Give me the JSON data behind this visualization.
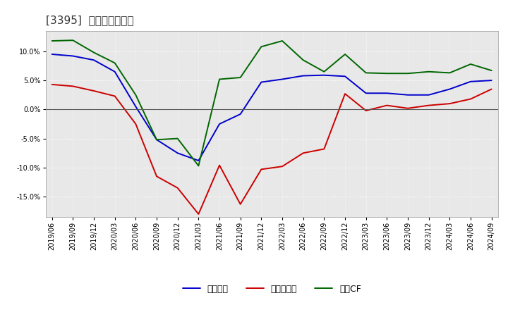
{
  "title": "[3395]  マージンの推移",
  "series": {
    "経常利益": {
      "color": "#0000cc",
      "data": [
        [
          "2019/06",
          9.5
        ],
        [
          "2019/09",
          9.2
        ],
        [
          "2019/12",
          8.5
        ],
        [
          "2020/03",
          6.5
        ],
        [
          "2020/06",
          0.5
        ],
        [
          "2020/09",
          -5.2
        ],
        [
          "2020/12",
          -7.5
        ],
        [
          "2021/03",
          -8.8
        ],
        [
          "2021/06",
          -2.5
        ],
        [
          "2021/09",
          -0.8
        ],
        [
          "2021/12",
          4.7
        ],
        [
          "2022/03",
          5.2
        ],
        [
          "2022/06",
          5.8
        ],
        [
          "2022/09",
          5.9
        ],
        [
          "2022/12",
          5.7
        ],
        [
          "2023/03",
          2.8
        ],
        [
          "2023/06",
          2.8
        ],
        [
          "2023/09",
          2.5
        ],
        [
          "2023/12",
          2.5
        ],
        [
          "2024/03",
          3.5
        ],
        [
          "2024/06",
          4.8
        ],
        [
          "2024/09",
          5.0
        ]
      ]
    },
    "当期純利益": {
      "color": "#cc0000",
      "data": [
        [
          "2019/06",
          4.3
        ],
        [
          "2019/09",
          4.0
        ],
        [
          "2019/12",
          3.2
        ],
        [
          "2020/03",
          2.3
        ],
        [
          "2020/06",
          -2.5
        ],
        [
          "2020/09",
          -11.5
        ],
        [
          "2020/12",
          -13.5
        ],
        [
          "2021/03",
          -18.0
        ],
        [
          "2021/06",
          -9.6
        ],
        [
          "2021/09",
          -16.3
        ],
        [
          "2021/12",
          -10.3
        ],
        [
          "2022/03",
          -9.8
        ],
        [
          "2022/06",
          -7.5
        ],
        [
          "2022/09",
          -6.8
        ],
        [
          "2022/12",
          2.7
        ],
        [
          "2023/03",
          -0.2
        ],
        [
          "2023/06",
          0.7
        ],
        [
          "2023/09",
          0.2
        ],
        [
          "2023/12",
          0.7
        ],
        [
          "2024/03",
          1.0
        ],
        [
          "2024/06",
          1.8
        ],
        [
          "2024/09",
          3.5
        ]
      ]
    },
    "営業CF": {
      "color": "#006600",
      "data": [
        [
          "2019/06",
          11.8
        ],
        [
          "2019/09",
          11.9
        ],
        [
          "2019/12",
          9.8
        ],
        [
          "2020/03",
          8.0
        ],
        [
          "2020/06",
          2.5
        ],
        [
          "2020/09",
          -5.2
        ],
        [
          "2020/12",
          -5.0
        ],
        [
          "2021/03",
          -9.7
        ],
        [
          "2021/06",
          5.2
        ],
        [
          "2021/09",
          5.5
        ],
        [
          "2021/12",
          10.8
        ],
        [
          "2022/03",
          11.8
        ],
        [
          "2022/06",
          8.5
        ],
        [
          "2022/09",
          6.5
        ],
        [
          "2022/12",
          9.5
        ],
        [
          "2023/03",
          6.3
        ],
        [
          "2023/06",
          6.2
        ],
        [
          "2023/09",
          6.2
        ],
        [
          "2023/12",
          6.5
        ],
        [
          "2024/03",
          6.3
        ],
        [
          "2024/06",
          7.8
        ],
        [
          "2024/09",
          6.7
        ]
      ]
    }
  },
  "ylim": [
    -18.5,
    13.5
  ],
  "yticks": [
    -15.0,
    -10.0,
    -5.0,
    0.0,
    5.0,
    10.0
  ],
  "background_color": "#ffffff",
  "plot_bg_color": "#e8e8e8",
  "grid_color": "#ffffff",
  "title_fontsize": 11,
  "legend_fontsize": 9,
  "tick_fontsize": 7,
  "legend_labels": [
    "経常利益",
    "当期純利益",
    "営業CF"
  ]
}
